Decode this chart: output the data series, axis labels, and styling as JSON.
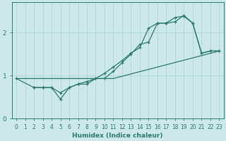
{
  "xlabel": "Humidex (Indice chaleur)",
  "ylabel": "",
  "bg_color": "#cce8e8",
  "grid_color": "#b0d4d4",
  "line_color": "#2a7a6a",
  "xlim": [
    -0.5,
    23.5
  ],
  "ylim": [
    0,
    2.7
  ],
  "xticks": [
    0,
    1,
    2,
    3,
    4,
    5,
    6,
    7,
    8,
    9,
    10,
    11,
    12,
    13,
    14,
    15,
    16,
    17,
    18,
    19,
    20,
    21,
    22,
    23
  ],
  "yticks": [
    0,
    1,
    2
  ],
  "line1_x": [
    0,
    11,
    23
  ],
  "line1_y": [
    0.93,
    0.93,
    1.57
  ],
  "line2_x": [
    2,
    3,
    4,
    5,
    6,
    7,
    8,
    9,
    10,
    11,
    12,
    13,
    14,
    15,
    16,
    17,
    18,
    19,
    20,
    21,
    22,
    23
  ],
  "line2_y": [
    0.72,
    0.72,
    0.72,
    0.45,
    0.72,
    0.8,
    0.8,
    0.93,
    0.93,
    1.1,
    1.3,
    1.5,
    1.72,
    1.78,
    2.22,
    2.22,
    2.25,
    2.4,
    2.22,
    1.52,
    1.57,
    1.57
  ],
  "line3_x": [
    0,
    2,
    3,
    4,
    5,
    6,
    7,
    8,
    9,
    10,
    11,
    12,
    13,
    14,
    15,
    16,
    17,
    18,
    19,
    20,
    21,
    22,
    23
  ],
  "line3_y": [
    0.93,
    0.72,
    0.72,
    0.72,
    0.6,
    0.72,
    0.8,
    0.86,
    0.93,
    1.05,
    1.2,
    1.35,
    1.52,
    1.65,
    2.1,
    2.22,
    2.22,
    2.35,
    2.38,
    2.22,
    1.52,
    1.57,
    1.57
  ]
}
